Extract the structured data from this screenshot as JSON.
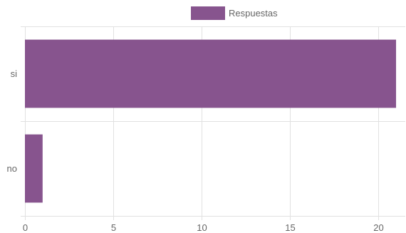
{
  "chart_data": {
    "type": "bar",
    "orientation": "horizontal",
    "categories": [
      "si",
      "no"
    ],
    "series": [
      {
        "name": "Respuestas",
        "values": [
          21,
          1
        ],
        "color": "#87548E"
      }
    ],
    "xlim": [
      0,
      21.2
    ],
    "xticks": [
      0,
      5,
      10,
      15,
      20
    ],
    "legend": "top-center",
    "grid": true,
    "title": "",
    "xlabel": "",
    "ylabel": ""
  }
}
